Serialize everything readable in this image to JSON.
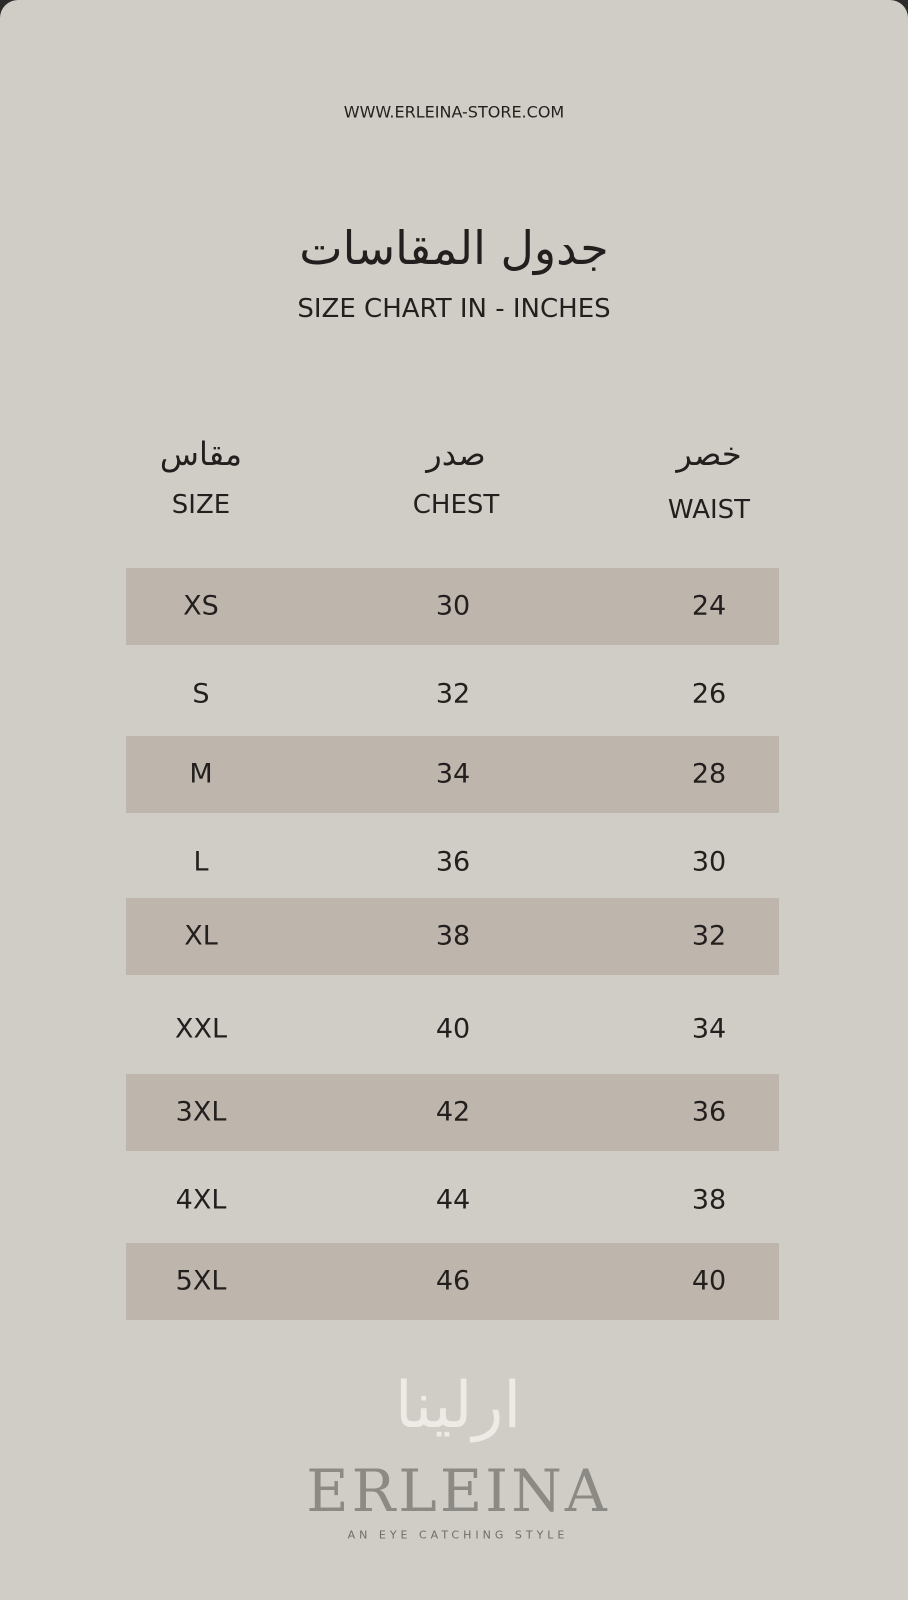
{
  "header": {
    "website": "WWW.ERLEINA-STORE.COM",
    "title_ar": "جدول المقاسات",
    "subtitle": "SIZE CHART IN - INCHES"
  },
  "columns": [
    {
      "ar": "مقاس",
      "en": "SIZE"
    },
    {
      "ar": "صدر",
      "en": "CHEST"
    },
    {
      "ar": "خصر",
      "en": "WAIST"
    }
  ],
  "rows": [
    [
      "XS",
      "30",
      "24"
    ],
    [
      "S",
      "32",
      "26"
    ],
    [
      "M",
      "34",
      "28"
    ],
    [
      "L",
      "36",
      "30"
    ],
    [
      "XL",
      "38",
      "32"
    ],
    [
      "XXL",
      "40",
      "34"
    ],
    [
      "3XL",
      "42",
      "36"
    ],
    [
      "4XL",
      "44",
      "38"
    ],
    [
      "5XL",
      "46",
      "40"
    ]
  ],
  "logo": {
    "name_ar": "ارلينا",
    "name_en": "ERLEINA",
    "tagline": "AN EYE CATCHING STYLE"
  },
  "colors": {
    "background": "#d0cdc6",
    "stripe": "#beb6ad",
    "text": "#231f1e",
    "logo": "#8c8a84",
    "logo_ar": "#eeebe6"
  }
}
